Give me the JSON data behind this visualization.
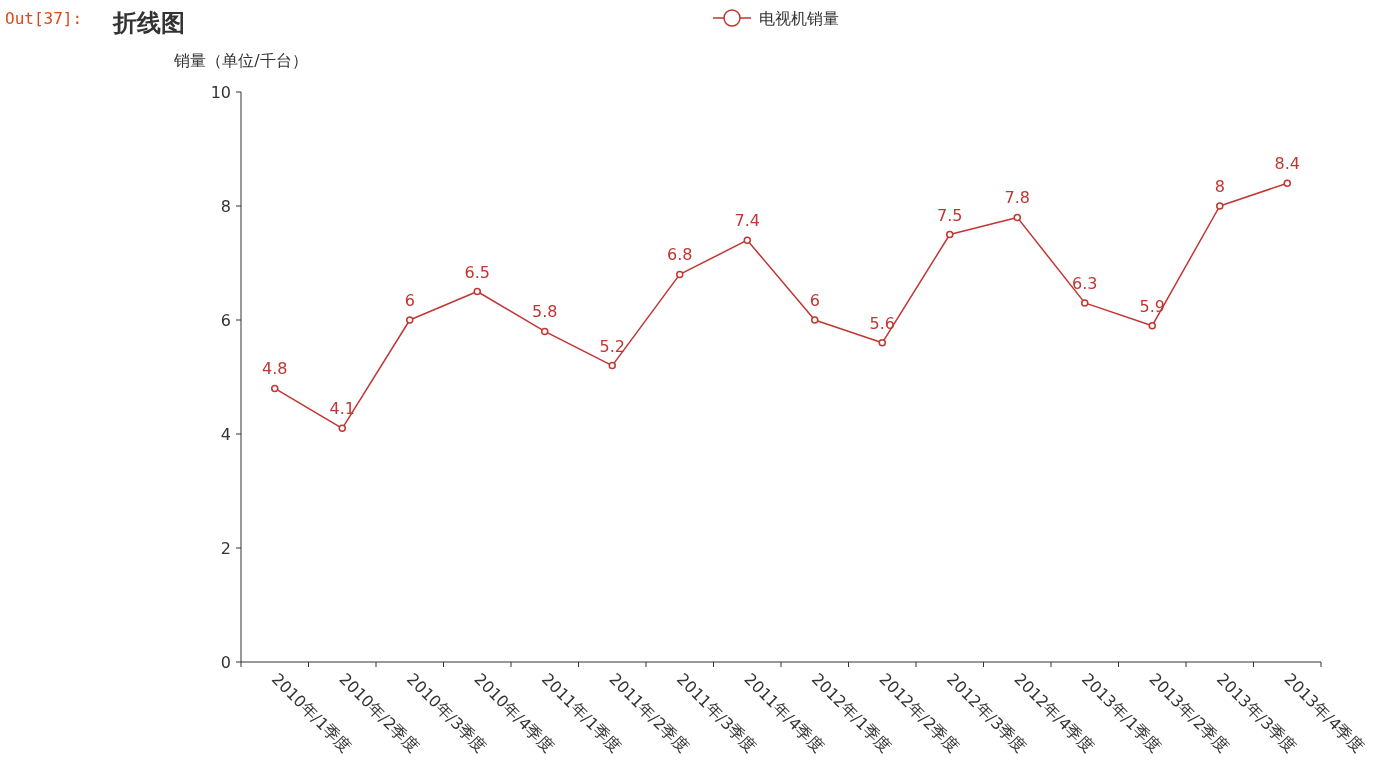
{
  "chart_data": {
    "type": "line",
    "title": "折线图",
    "ylabel": "销量（单位/千台）",
    "annotations": [
      "Out[37]:"
    ],
    "categories": [
      "2010年/1季度",
      "2010年/2季度",
      "2010年/3季度",
      "2010年/4季度",
      "2011年/1季度",
      "2011年/2季度",
      "2011年/3季度",
      "2011年/4季度",
      "2012年/1季度",
      "2012年/2季度",
      "2012年/3季度",
      "2012年/4季度",
      "2013年/1季度",
      "2013年/2季度",
      "2013年/3季度",
      "2013年/4季度"
    ],
    "series": [
      {
        "name": "电视机销量",
        "color": "#c23531",
        "values": [
          4.8,
          4.1,
          6,
          6.5,
          5.8,
          5.2,
          6.8,
          7.4,
          6,
          5.6,
          7.5,
          7.8,
          6.3,
          5.9,
          8,
          8.4
        ]
      }
    ],
    "ylim": [
      0,
      10
    ],
    "yticks": [
      0,
      2,
      4,
      6,
      8,
      10
    ],
    "data_labels": true,
    "legend": "top",
    "marker": "circle",
    "grid": false,
    "line_style": "solid"
  }
}
